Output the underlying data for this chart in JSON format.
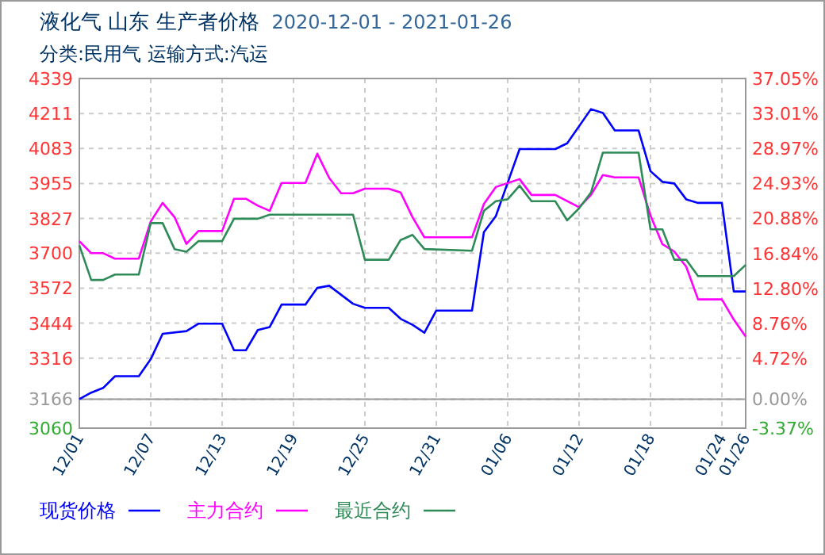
{
  "chart_data": {
    "type": "line",
    "title": "液化气 山东 生产者价格",
    "subtitle": "分类:民用气 运输方式:汽运",
    "annotations": [
      "2020-12-01 - 2021-01-26"
    ],
    "xlim": [
      "2020-12-01",
      "2021-01-26"
    ],
    "xticks": [
      {
        "value": "2020-12-01",
        "label": "12/01"
      },
      {
        "value": "2020-12-07",
        "label": "12/07"
      },
      {
        "value": "2020-12-13",
        "label": "12/13"
      },
      {
        "value": "2020-12-19",
        "label": "12/19"
      },
      {
        "value": "2020-12-25",
        "label": "12/25"
      },
      {
        "value": "2020-12-31",
        "label": "12/31"
      },
      {
        "value": "2021-01-06",
        "label": "01/06"
      },
      {
        "value": "2021-01-12",
        "label": "01/12"
      },
      {
        "value": "2021-01-18",
        "label": "01/18"
      },
      {
        "value": "2021-01-24",
        "label": "01/24"
      },
      {
        "value": "2021-01-26",
        "label": "01/26"
      }
    ],
    "ylim": [
      3060,
      4339
    ],
    "yticks": [
      3060,
      3166,
      3316,
      3444,
      3572,
      3700,
      3827,
      3955,
      4083,
      4211,
      4339
    ],
    "y2lim": [
      -3.37,
      37.05
    ],
    "y2ticks": [
      {
        "value": -3.37,
        "label": "-3.37%"
      },
      {
        "value": 0,
        "label": "0.00%"
      },
      {
        "value": 4.72,
        "label": "4.72%"
      },
      {
        "value": 8.76,
        "label": "8.76%"
      },
      {
        "value": 12.8,
        "label": "12.80%"
      },
      {
        "value": 16.84,
        "label": "16.84%"
      },
      {
        "value": 20.88,
        "label": "20.88%"
      },
      {
        "value": 24.93,
        "label": "24.93%"
      },
      {
        "value": 28.97,
        "label": "28.97%"
      },
      {
        "value": 33.01,
        "label": "33.01%"
      },
      {
        "value": 37.05,
        "label": "37.05%"
      }
    ],
    "ref_lines": [
      {
        "axis": "y",
        "value": 3166,
        "label": null,
        "color": "#999999"
      }
    ],
    "grid": true,
    "legend": "bottom",
    "marker": "none",
    "line_style": "solid",
    "series": [
      {
        "name": "现货价格",
        "color": "#0000ff",
        "x": [
          "2020-12-01",
          "2020-12-02",
          "2020-12-03",
          "2020-12-04",
          "2020-12-06",
          "2020-12-07",
          "2020-12-08",
          "2020-12-10",
          "2020-12-11",
          "2020-12-13",
          "2020-12-14",
          "2020-12-15",
          "2020-12-16",
          "2020-12-17",
          "2020-12-18",
          "2020-12-20",
          "2020-12-21",
          "2020-12-22",
          "2020-12-24",
          "2020-12-25",
          "2020-12-27",
          "2020-12-28",
          "2020-12-29",
          "2020-12-30",
          "2020-12-31",
          "2021-01-03",
          "2021-01-04",
          "2021-01-05",
          "2021-01-07",
          "2021-01-10",
          "2021-01-11",
          "2021-01-13",
          "2021-01-14",
          "2021-01-15",
          "2021-01-17",
          "2021-01-18",
          "2021-01-19",
          "2021-01-20",
          "2021-01-21",
          "2021-01-22",
          "2021-01-24",
          "2021-01-25",
          "2021-01-26"
        ],
        "values": [
          3166,
          3190,
          3207,
          3250,
          3250,
          3312,
          3405,
          3415,
          3442,
          3442,
          3345,
          3345,
          3419,
          3430,
          3512,
          3512,
          3573,
          3581,
          3515,
          3500,
          3500,
          3460,
          3438,
          3409,
          3490,
          3490,
          3777,
          3835,
          4081,
          4081,
          4102,
          4227,
          4213,
          4149,
          4149,
          4000,
          3961,
          3955,
          3897,
          3884,
          3884,
          3560,
          3560
        ]
      },
      {
        "name": "主力合约",
        "color": "#ff00ff",
        "x": [
          "2020-12-01",
          "2020-12-02",
          "2020-12-03",
          "2020-12-04",
          "2020-12-06",
          "2020-12-07",
          "2020-12-08",
          "2020-12-09",
          "2020-12-10",
          "2020-12-11",
          "2020-12-13",
          "2020-12-14",
          "2020-12-15",
          "2020-12-16",
          "2020-12-17",
          "2020-12-18",
          "2020-12-20",
          "2020-12-21",
          "2020-12-22",
          "2020-12-23",
          "2020-12-24",
          "2020-12-25",
          "2020-12-27",
          "2020-12-28",
          "2020-12-29",
          "2020-12-30",
          "2021-01-03",
          "2021-01-04",
          "2021-01-05",
          "2021-01-07",
          "2021-01-08",
          "2021-01-10",
          "2021-01-12",
          "2021-01-13",
          "2021-01-14",
          "2021-01-15",
          "2021-01-17",
          "2021-01-18",
          "2021-01-19",
          "2021-01-20",
          "2021-01-21",
          "2021-01-22",
          "2021-01-24",
          "2021-01-25",
          "2021-01-26"
        ],
        "values": [
          3744,
          3700,
          3700,
          3680,
          3680,
          3816,
          3884,
          3832,
          3734,
          3781,
          3781,
          3899,
          3899,
          3874,
          3855,
          3957,
          3957,
          4064,
          3975,
          3919,
          3919,
          3936,
          3936,
          3922,
          3832,
          3758,
          3758,
          3880,
          3942,
          3971,
          3913,
          3913,
          3868,
          3913,
          3986,
          3977,
          3977,
          3838,
          3733,
          3706,
          3651,
          3531,
          3531,
          3457,
          3395
        ]
      },
      {
        "name": "最近合约",
        "color": "#2e8b57",
        "x": [
          "2020-12-01",
          "2020-12-02",
          "2020-12-03",
          "2020-12-04",
          "2020-12-06",
          "2020-12-07",
          "2020-12-08",
          "2020-12-09",
          "2020-12-10",
          "2020-12-11",
          "2020-12-13",
          "2020-12-14",
          "2020-12-16",
          "2020-12-17",
          "2020-12-24",
          "2020-12-25",
          "2020-12-27",
          "2020-12-28",
          "2020-12-29",
          "2020-12-30",
          "2021-01-03",
          "2021-01-04",
          "2021-01-05",
          "2021-01-06",
          "2021-01-07",
          "2021-01-08",
          "2021-01-10",
          "2021-01-11",
          "2021-01-12",
          "2021-01-13",
          "2021-01-14",
          "2021-01-17",
          "2021-01-18",
          "2021-01-19",
          "2021-01-20",
          "2021-01-21",
          "2021-01-22",
          "2021-01-25",
          "2021-01-26"
        ],
        "values": [
          3729,
          3602,
          3602,
          3622,
          3622,
          3810,
          3810,
          3715,
          3705,
          3744,
          3744,
          3826,
          3826,
          3841,
          3841,
          3676,
          3676,
          3748,
          3767,
          3715,
          3709,
          3855,
          3890,
          3897,
          3947,
          3890,
          3890,
          3820,
          3864,
          3922,
          4068,
          4068,
          3787,
          3787,
          3676,
          3676,
          3616,
          3616,
          3657
        ]
      }
    ]
  }
}
